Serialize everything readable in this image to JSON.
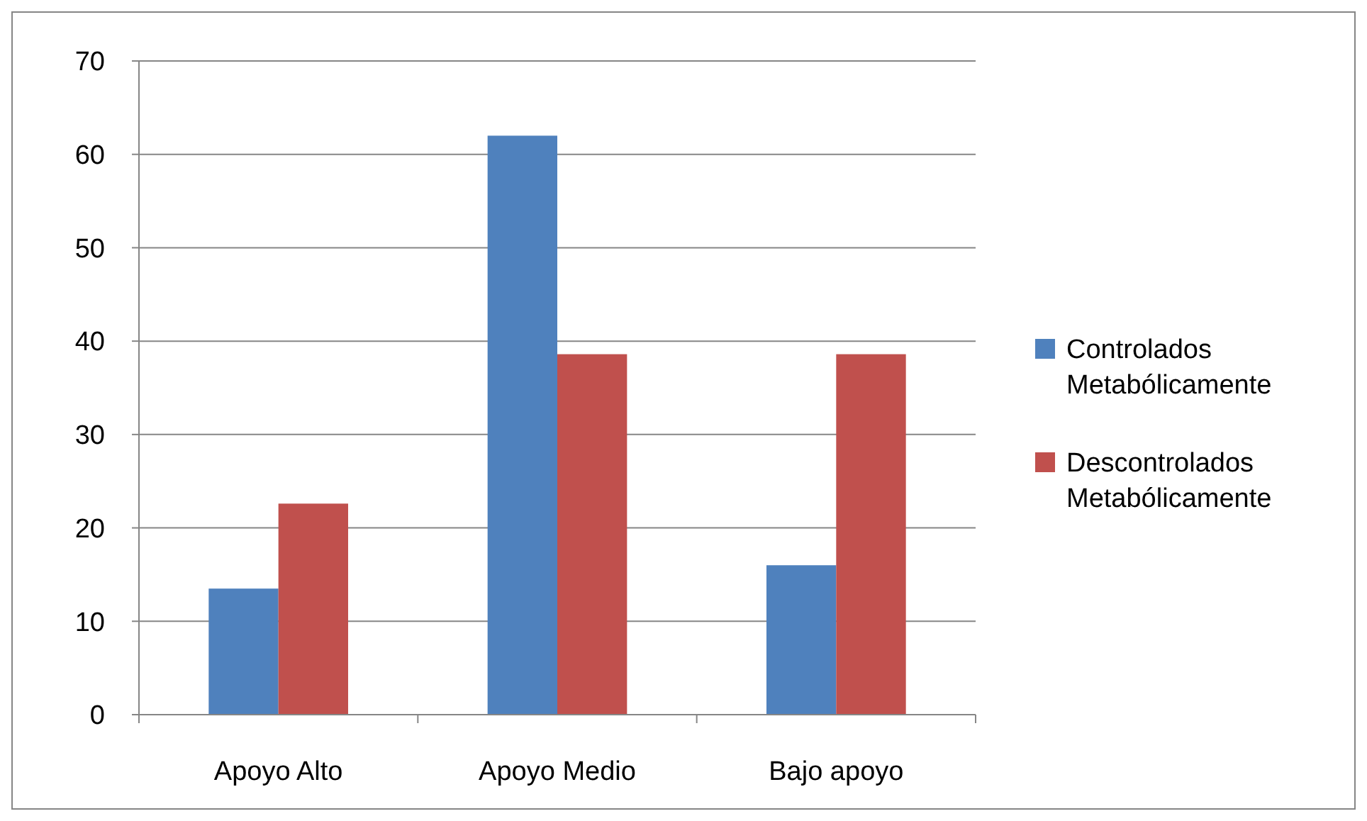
{
  "chart_data": {
    "type": "bar",
    "categories": [
      "Apoyo Alto",
      "Apoyo Medio",
      "Bajo apoyo"
    ],
    "series": [
      {
        "name": "Controlados Metabólicamente",
        "color": "#4f81bd",
        "values": [
          13.5,
          62,
          16
        ]
      },
      {
        "name": "Descontrolados Metabólicamente",
        "color": "#c0504d",
        "values": [
          22.6,
          38.6,
          38.6
        ]
      }
    ],
    "ylim": [
      0,
      70
    ],
    "yticks": [
      0,
      10,
      20,
      30,
      40,
      50,
      60,
      70
    ],
    "grid": "y",
    "legend": "right"
  }
}
